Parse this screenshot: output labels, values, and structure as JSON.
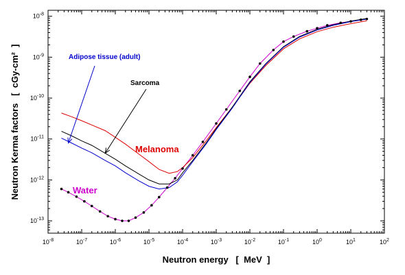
{
  "chart_data": {
    "type": "line",
    "xlabel": "Neutron energy   [  MeV  ]",
    "ylabel": "Neutron Kerma factors   [  cGy-cm²  ]",
    "xscale": "log",
    "yscale": "log",
    "xlim": [
      1e-08,
      100
    ],
    "ylim": [
      5e-14,
      1.4e-08
    ],
    "x_ticks": [
      1e-08,
      1e-07,
      1e-06,
      1e-05,
      0.0001,
      0.001,
      0.01,
      0.1,
      1,
      10,
      100
    ],
    "x_tick_labels": [
      {
        "base": "10",
        "exp": "-8"
      },
      {
        "base": "10",
        "exp": "-7"
      },
      {
        "base": "10",
        "exp": "-6"
      },
      {
        "base": "10",
        "exp": "-5"
      },
      {
        "base": "10",
        "exp": "-4"
      },
      {
        "base": "10",
        "exp": "-3"
      },
      {
        "base": "10",
        "exp": "-2"
      },
      {
        "base": "10",
        "exp": "-1"
      },
      {
        "base": "10",
        "exp": "0"
      },
      {
        "base": "10",
        "exp": "1"
      },
      {
        "base": "10",
        "exp": "2"
      }
    ],
    "y_ticks": [
      1e-13,
      1e-12,
      1e-11,
      1e-10,
      1e-09,
      1e-08
    ],
    "y_tick_labels": [
      {
        "base": "10",
        "exp": "-13"
      },
      {
        "base": "10",
        "exp": "-12"
      },
      {
        "base": "10",
        "exp": "-11"
      },
      {
        "base": "10",
        "exp": "-10"
      },
      {
        "base": "10",
        "exp": "-9"
      },
      {
        "base": "10",
        "exp": "-8"
      }
    ],
    "grid": false,
    "series": [
      {
        "name": "Water",
        "color": "#cc00cc",
        "marker": "dot",
        "x": [
          2.5e-08,
          4e-08,
          7e-08,
          1.2e-07,
          2e-07,
          3.5e-07,
          6e-07,
          1e-06,
          1.6e-06,
          2.5e-06,
          4e-06,
          7e-06,
          1.2e-05,
          2e-05,
          3.5e-05,
          6e-05,
          0.0001,
          0.0002,
          0.0004,
          0.001,
          0.002,
          0.005,
          0.01,
          0.02,
          0.05,
          0.1,
          0.2,
          0.5,
          1,
          2,
          5,
          10,
          20,
          30
        ],
        "y": [
          6e-13,
          5e-13,
          3.9e-13,
          3e-13,
          2.3e-13,
          1.7e-13,
          1.3e-13,
          1.1e-13,
          1e-13,
          1e-13,
          1.2e-13,
          1.6e-13,
          2.4e-13,
          3.8e-13,
          6.5e-13,
          1.1e-12,
          1.9e-12,
          4e-12,
          8.5e-12,
          2.4e-11,
          5.3e-11,
          1.5e-10,
          3.3e-10,
          7e-10,
          1.5e-09,
          2.4e-09,
          3.2e-09,
          4.3e-09,
          5.1e-09,
          6e-09,
          6.9e-09,
          7.5e-09,
          8.2e-09,
          8.6e-09
        ]
      },
      {
        "name": "Melanoma",
        "color": "#dd0000",
        "marker": "none",
        "x": [
          2.5e-08,
          5e-08,
          1e-07,
          2e-07,
          5e-07,
          1e-06,
          2e-06,
          5e-06,
          1e-05,
          2e-05,
          4e-05,
          7e-05,
          0.0001,
          0.0002,
          0.0005,
          0.001,
          0.003,
          0.01,
          0.03,
          0.1,
          0.3,
          1,
          3,
          10,
          30
        ],
        "y": [
          4.3e-11,
          3.5e-11,
          2.8e-11,
          2.2e-11,
          1.6e-11,
          1.1e-11,
          7.5e-12,
          4.3e-12,
          2.8e-12,
          1.8e-12,
          1.45e-12,
          1.6e-12,
          2e-12,
          3.5e-12,
          9e-12,
          1.9e-11,
          6e-11,
          2.3e-10,
          6.3e-10,
          1.6e-09,
          2.8e-09,
          4.2e-09,
          5.4e-09,
          6.6e-09,
          7.8e-09
        ]
      },
      {
        "name": "Sarcoma",
        "color": "#000000",
        "marker": "none",
        "x": [
          2.5e-08,
          5e-08,
          1e-07,
          2e-07,
          5e-07,
          1e-06,
          2e-06,
          5e-06,
          1e-05,
          2e-05,
          4e-05,
          7e-05,
          0.0001,
          0.0002,
          0.0005,
          0.001,
          0.003,
          0.01,
          0.03,
          0.1,
          0.3,
          1,
          3,
          10,
          30
        ],
        "y": [
          1.55e-11,
          1.2e-11,
          9e-12,
          7e-12,
          4.5e-12,
          3.2e-12,
          2.2e-12,
          1.4e-12,
          1e-12,
          8e-13,
          8e-13,
          1e-12,
          1.5e-12,
          3e-12,
          8e-12,
          1.8e-11,
          6e-11,
          2.5e-10,
          7e-10,
          1.8e-09,
          3.2e-09,
          4.8e-09,
          6.2e-09,
          7.6e-09,
          8.8e-09
        ]
      },
      {
        "name": "Adipose tissue (adult)",
        "color": "#0000cc",
        "marker": "none",
        "x": [
          2.5e-08,
          5e-08,
          1e-07,
          2e-07,
          5e-07,
          1e-06,
          2e-06,
          5e-06,
          1e-05,
          2e-05,
          4e-05,
          7e-05,
          0.0001,
          0.0002,
          0.0005,
          0.001,
          0.003,
          0.01,
          0.03,
          0.1,
          0.3,
          1,
          3,
          10,
          30
        ],
        "y": [
          1.05e-11,
          8e-12,
          6e-12,
          4.6e-12,
          3e-12,
          2.2e-12,
          1.5e-12,
          9.5e-13,
          7e-13,
          6e-13,
          6.5e-13,
          9e-13,
          1.3e-12,
          2.8e-12,
          7.5e-12,
          1.7e-11,
          5.7e-11,
          2.4e-10,
          6.8e-10,
          1.75e-09,
          3.1e-09,
          4.6e-09,
          6e-09,
          7.4e-09,
          8.5e-09
        ]
      }
    ],
    "annotations": [
      {
        "text": "Adipose tissue (adult)",
        "color": "#0000cc",
        "arrow_to": [
          4e-08,
          8e-12
        ]
      },
      {
        "text": "Sarcoma",
        "color": "#000000",
        "arrow_to": [
          5e-07,
          4.5e-12
        ]
      },
      {
        "text": "Melanoma",
        "color": "#dd0000",
        "arrow_to": null
      },
      {
        "text": "Water",
        "color": "#cc00cc",
        "arrow_to": null
      }
    ]
  }
}
